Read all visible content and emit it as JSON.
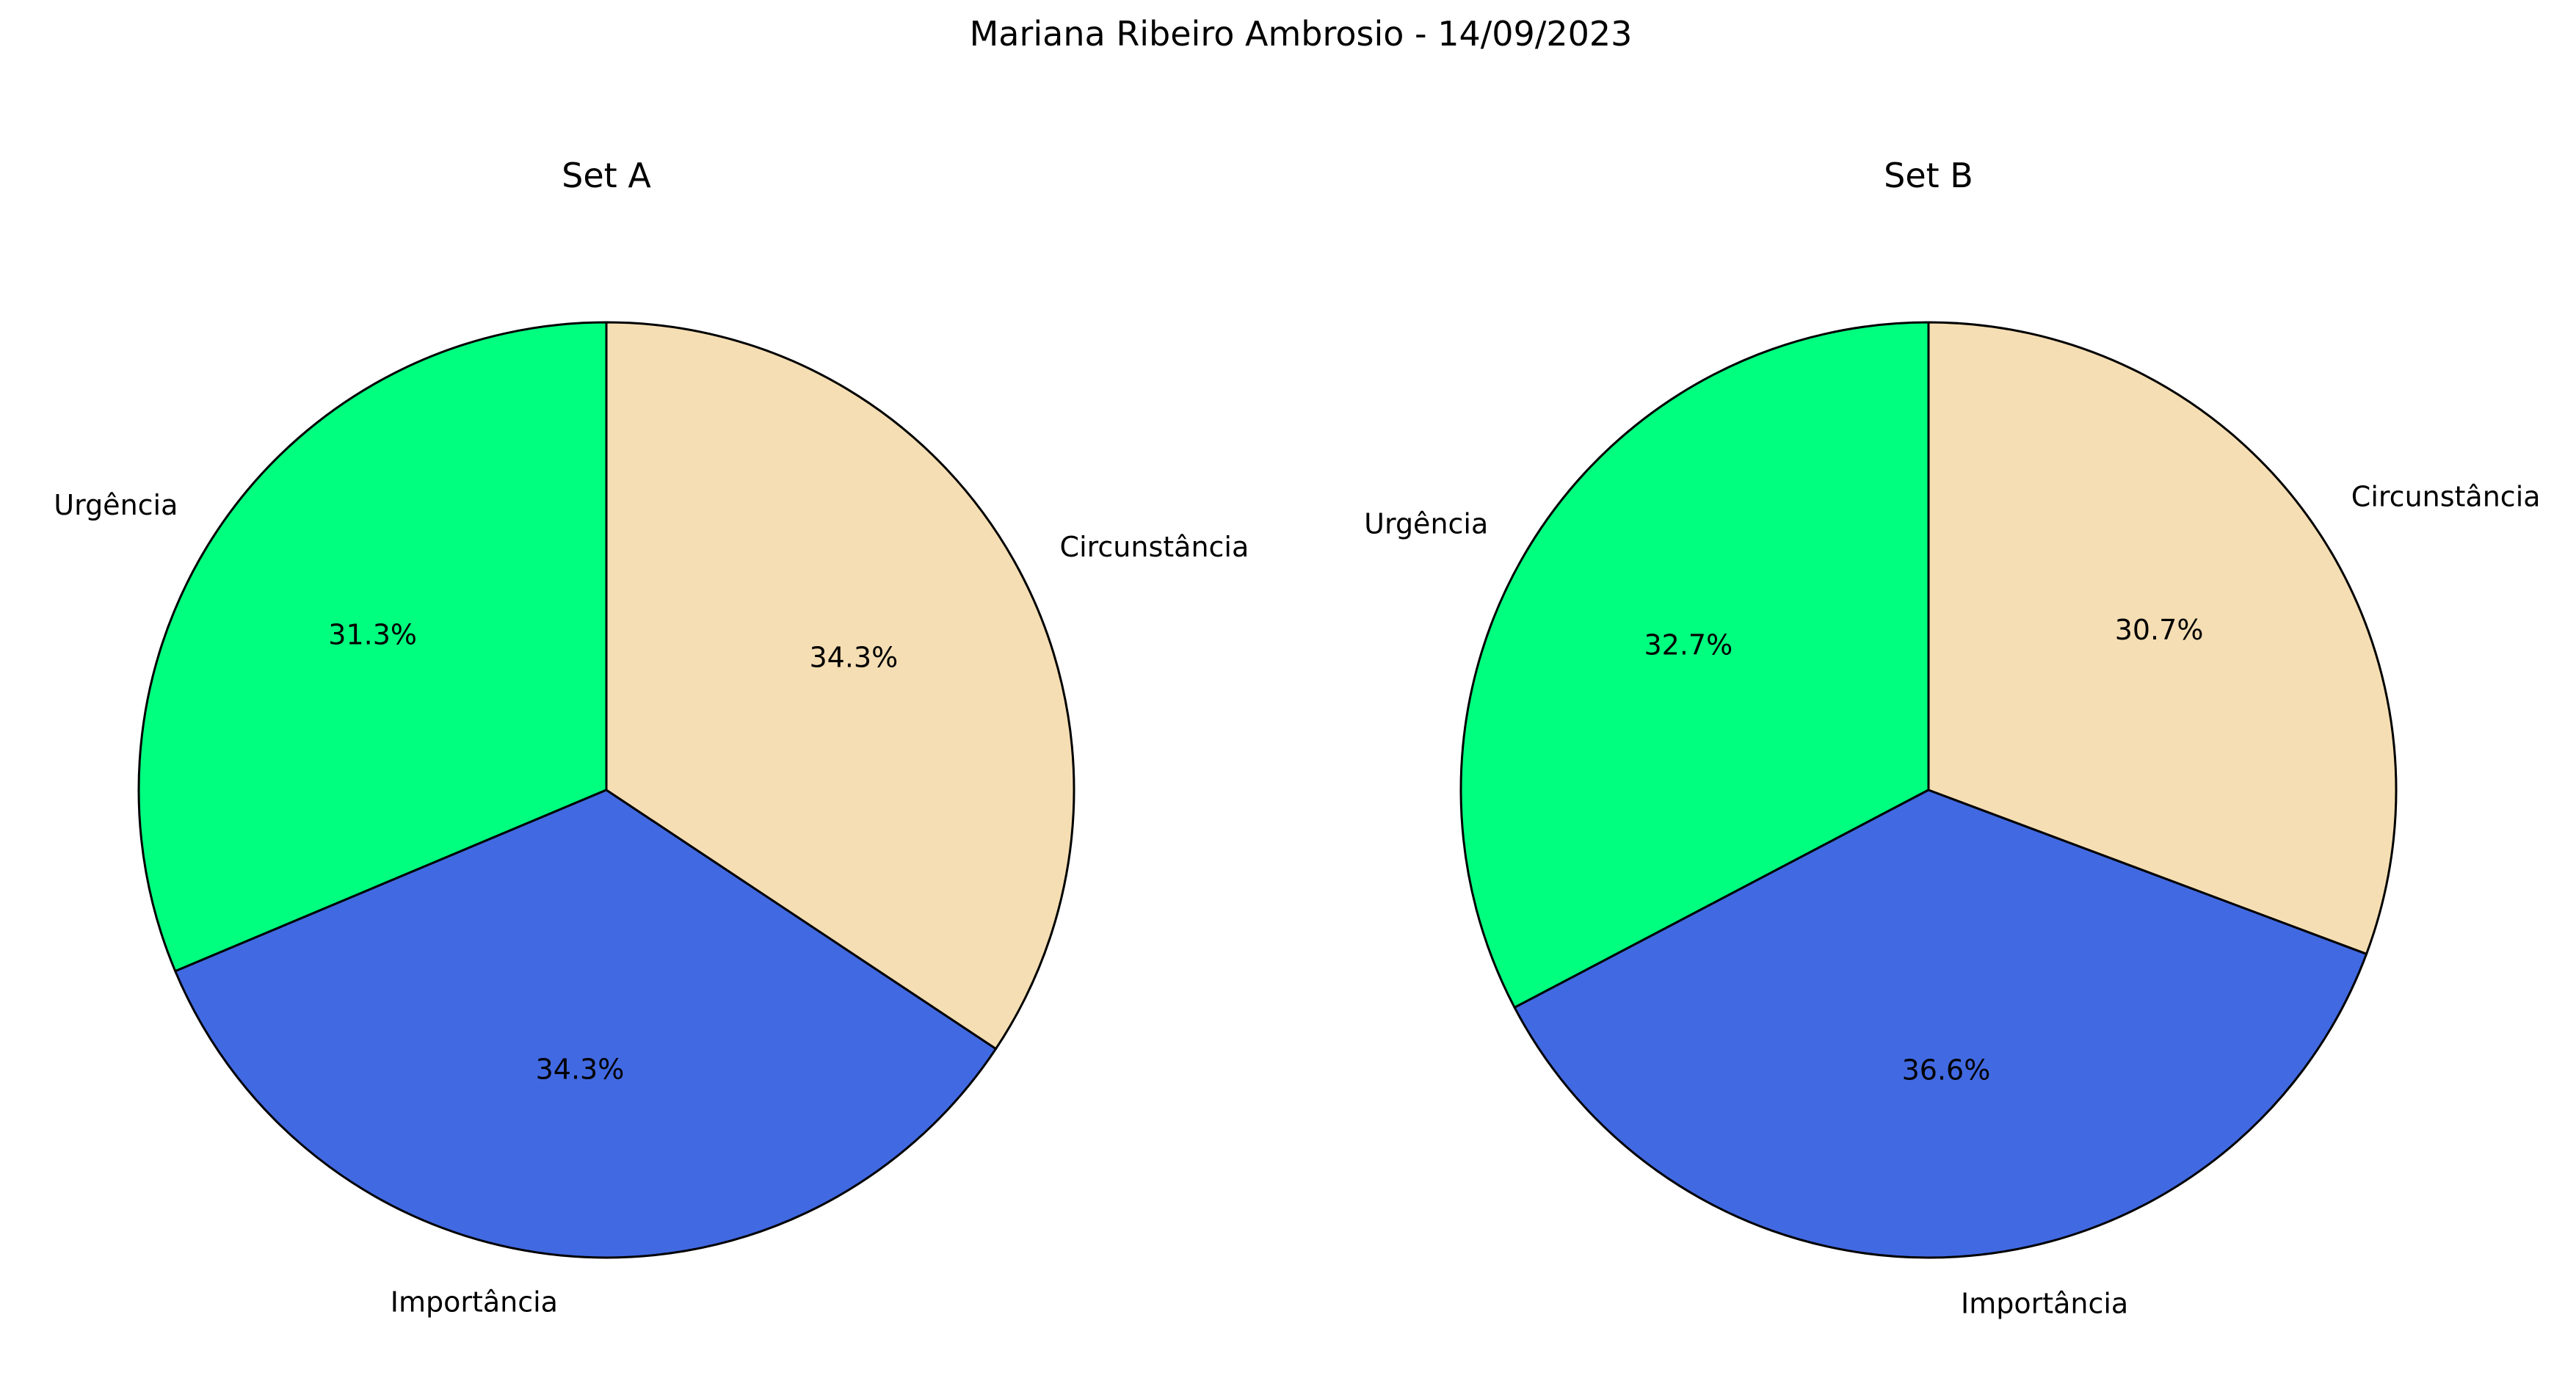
{
  "figure": {
    "title": "Mariana Ribeiro Ambrosio - 14/09/2023"
  },
  "colors": {
    "Urgência": "#00ff7f",
    "Importância": "#4169e1",
    "Circunstância": "#f5deb3",
    "edge": "#000000"
  },
  "chart_data": [
    {
      "type": "pie",
      "title": "Set A",
      "labels": [
        "Urgência",
        "Importância",
        "Circunstância"
      ],
      "values": [
        31.3,
        34.3,
        34.3
      ],
      "value_labels": [
        "31.3%",
        "34.3%",
        "34.3%"
      ],
      "start_angle_deg": 90,
      "direction": "counterclockwise"
    },
    {
      "type": "pie",
      "title": "Set B",
      "labels": [
        "Urgência",
        "Importância",
        "Circunstância"
      ],
      "values": [
        32.7,
        36.6,
        30.7
      ],
      "value_labels": [
        "32.7%",
        "36.6%",
        "30.7%"
      ],
      "start_angle_deg": 90,
      "direction": "counterclockwise"
    }
  ]
}
